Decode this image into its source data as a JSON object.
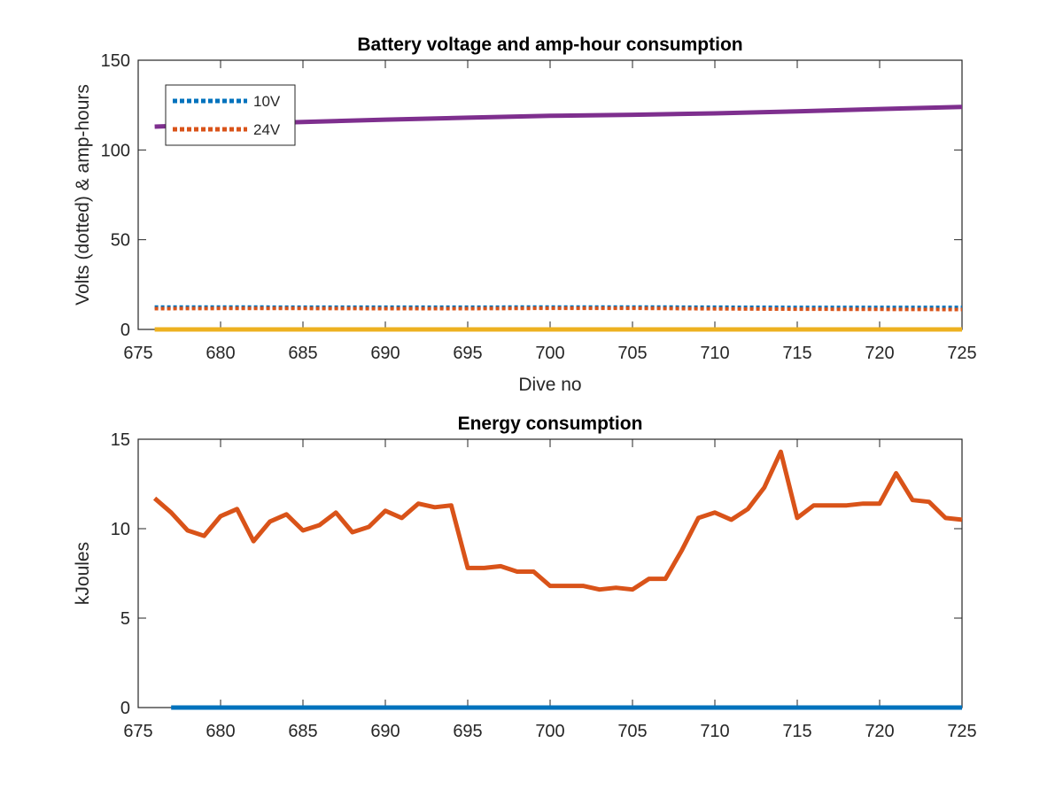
{
  "chart_data": [
    {
      "type": "line",
      "title": "Battery voltage and amp-hour consumption",
      "xlabel": "Dive no",
      "ylabel": "Volts (dotted) & amp-hours",
      "xlim": [
        675,
        725
      ],
      "ylim": [
        0,
        150
      ],
      "xticks": [
        "675",
        "680",
        "685",
        "690",
        "695",
        "700",
        "705",
        "710",
        "715",
        "720",
        "725"
      ],
      "yticks": [
        "0",
        "50",
        "100",
        "150"
      ],
      "grid": false,
      "legend": {
        "placement": "top-left",
        "entries": [
          "10V",
          "24V"
        ]
      },
      "series": [
        {
          "name": "10V",
          "style": "dotted",
          "color": "#0072BD",
          "x": [
            676,
            680,
            685,
            690,
            695,
            700,
            705,
            710,
            715,
            720,
            725
          ],
          "y": [
            12.5,
            12.5,
            12.4,
            12.4,
            12.4,
            12.5,
            12.5,
            12.4,
            12.3,
            12.3,
            12.3
          ]
        },
        {
          "name": "24V",
          "style": "dotted",
          "color": "#D95319",
          "x": [
            676,
            680,
            685,
            690,
            695,
            700,
            705,
            710,
            715,
            720,
            725
          ],
          "y": [
            11.6,
            11.7,
            11.7,
            11.6,
            11.6,
            11.8,
            11.8,
            11.5,
            11.3,
            11.2,
            11.1
          ]
        },
        {
          "style": "solid",
          "color": "#EDB120",
          "x": [
            676,
            725
          ],
          "y": [
            0,
            0
          ]
        },
        {
          "style": "solid",
          "color": "#7E2F8E",
          "x": [
            676,
            680,
            685,
            690,
            695,
            700,
            705,
            710,
            715,
            720,
            725
          ],
          "y": [
            113,
            114.3,
            115.6,
            116.9,
            118,
            119,
            119.6,
            120.4,
            121.5,
            122.8,
            124
          ]
        }
      ]
    },
    {
      "type": "line",
      "title": "Energy consumption",
      "xlabel": "",
      "ylabel": "kJoules",
      "xlim": [
        675,
        725
      ],
      "ylim": [
        0,
        15
      ],
      "xticks": [
        "675",
        "680",
        "685",
        "690",
        "695",
        "700",
        "705",
        "710",
        "715",
        "720",
        "725"
      ],
      "yticks": [
        "0",
        "5",
        "10",
        "15"
      ],
      "grid": false,
      "series": [
        {
          "style": "solid",
          "color": "#D95319",
          "x": [
            676,
            677,
            678,
            679,
            680,
            681,
            682,
            683,
            684,
            685,
            686,
            687,
            688,
            689,
            690,
            691,
            692,
            693,
            694,
            695,
            696,
            697,
            698,
            699,
            700,
            701,
            702,
            703,
            704,
            705,
            706,
            707,
            708,
            709,
            710,
            711,
            712,
            713,
            714,
            715,
            716,
            717,
            718,
            719,
            720,
            721,
            722,
            723,
            724,
            725
          ],
          "y": [
            11.7,
            10.9,
            9.9,
            9.6,
            10.7,
            11.1,
            9.3,
            10.4,
            10.8,
            9.9,
            10.2,
            10.9,
            9.8,
            10.1,
            11.0,
            10.6,
            11.4,
            11.2,
            11.3,
            7.8,
            7.8,
            7.9,
            7.6,
            7.6,
            6.8,
            6.8,
            6.8,
            6.6,
            6.7,
            6.6,
            7.2,
            7.2,
            8.8,
            10.6,
            10.9,
            10.5,
            11.1,
            12.3,
            14.3,
            10.6,
            11.3,
            11.3,
            11.3,
            11.4,
            11.4,
            13.1,
            11.6,
            11.5,
            10.6,
            10.5
          ]
        },
        {
          "style": "solid",
          "color": "#0072BD",
          "x": [
            677,
            725
          ],
          "y": [
            0,
            0
          ]
        }
      ]
    }
  ]
}
